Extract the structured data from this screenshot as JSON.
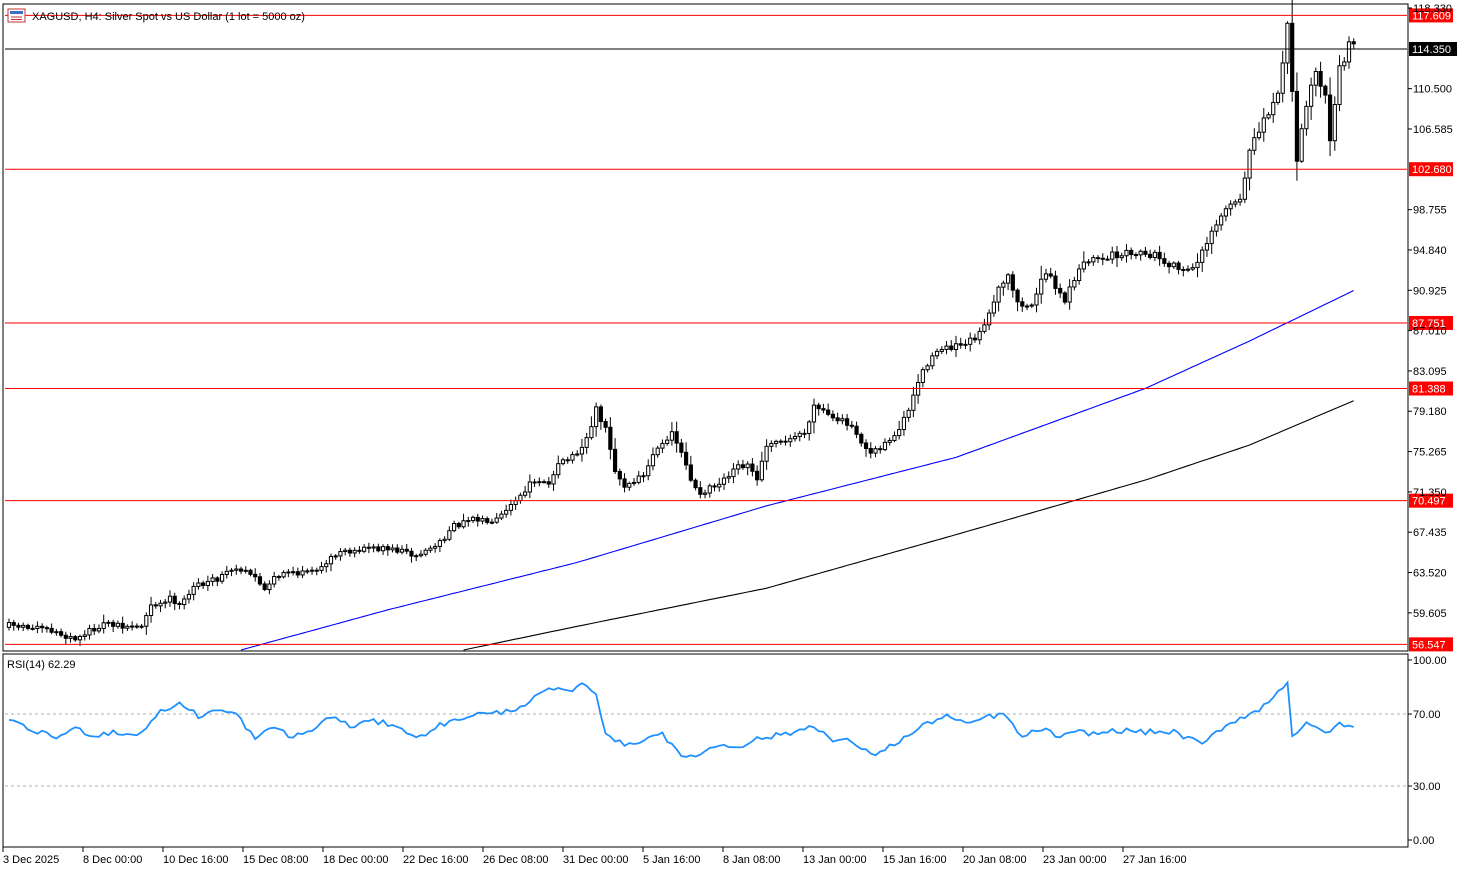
{
  "window": {
    "title": "XAGUSD, H4:  Silver Spot vs US Dollar (1 lot = 5000 oz)",
    "icon": "chart-window-icon"
  },
  "colors": {
    "background": "#ffffff",
    "candle": "#000000",
    "level_line": "#ff0000",
    "ma_fast": "#0000ff",
    "ma_slow": "#000000",
    "rsi_line": "#1e90ff",
    "rsi_levels": "#b0b0b0",
    "current_price_bg": "#000000",
    "level_label_bg": "#ff0000"
  },
  "chart_data": [
    {
      "type": "candlestick",
      "symbol": "XAGUSD",
      "timeframe": "H4",
      "ylim": [
        56.0,
        118.33
      ],
      "y_ticks": [
        "118.330",
        "110.500",
        "106.585",
        "98.755",
        "94.840",
        "90.925",
        "87.010",
        "83.095",
        "79.180",
        "75.265",
        "71.350",
        "67.435",
        "63.520",
        "59.605"
      ],
      "x_ticks": [
        "3 Dec 2025",
        "8 Dec 00:00",
        "10 Dec 16:00",
        "15 Dec 08:00",
        "18 Dec 00:00",
        "22 Dec 16:00",
        "26 Dec 08:00",
        "31 Dec 00:00",
        "5 Jan 16:00",
        "8 Jan 08:00",
        "13 Jan 00:00",
        "15 Jan 16:00",
        "20 Jan 08:00",
        "23 Jan 00:00",
        "27 Jan 16:00"
      ],
      "current_price": "114.350",
      "horizontal_levels": [
        "117.609",
        "102.680",
        "87.751",
        "81.388",
        "70.497",
        "56.547"
      ],
      "close_path": [
        [
          0,
          58.4
        ],
        [
          8,
          57.9
        ],
        [
          14,
          57.1
        ],
        [
          20,
          58.6
        ],
        [
          24,
          58.2
        ],
        [
          28,
          58.3
        ],
        [
          30,
          60.2
        ],
        [
          34,
          61.0
        ],
        [
          36,
          60.6
        ],
        [
          40,
          62.4
        ],
        [
          44,
          62.9
        ],
        [
          46,
          63.8
        ],
        [
          50,
          63.9
        ],
        [
          54,
          62.0
        ],
        [
          56,
          63.2
        ],
        [
          60,
          63.6
        ],
        [
          64,
          63.5
        ],
        [
          66,
          64.3
        ],
        [
          70,
          65.6
        ],
        [
          76,
          65.9
        ],
        [
          82,
          65.7
        ],
        [
          86,
          65.1
        ],
        [
          90,
          66.1
        ],
        [
          94,
          68.0
        ],
        [
          98,
          68.6
        ],
        [
          102,
          68.7
        ],
        [
          106,
          70.1
        ],
        [
          110,
          72.1
        ],
        [
          114,
          72.2
        ],
        [
          116,
          74.3
        ],
        [
          120,
          74.8
        ],
        [
          122,
          76.5
        ],
        [
          124,
          79.3
        ],
        [
          126,
          77.4
        ],
        [
          128,
          73.3
        ],
        [
          130,
          71.9
        ],
        [
          134,
          73.0
        ],
        [
          137,
          75.9
        ],
        [
          140,
          76.9
        ],
        [
          142,
          75.2
        ],
        [
          144,
          72.4
        ],
        [
          146,
          71.3
        ],
        [
          150,
          72.0
        ],
        [
          154,
          73.7
        ],
        [
          156,
          73.8
        ],
        [
          158,
          72.7
        ],
        [
          160,
          75.6
        ],
        [
          164,
          76.4
        ],
        [
          168,
          77.1
        ],
        [
          170,
          79.8
        ],
        [
          173,
          79.1
        ],
        [
          176,
          78.2
        ],
        [
          178,
          77.5
        ],
        [
          180,
          75.9
        ],
        [
          182,
          75.0
        ],
        [
          184,
          75.5
        ],
        [
          188,
          77.4
        ],
        [
          190,
          79.3
        ],
        [
          192,
          82.0
        ],
        [
          195,
          84.8
        ],
        [
          198,
          85.2
        ],
        [
          202,
          85.6
        ],
        [
          205,
          86.6
        ],
        [
          209,
          91.2
        ],
        [
          211,
          92.6
        ],
        [
          213,
          89.6
        ],
        [
          216,
          89.3
        ],
        [
          218,
          92.3
        ],
        [
          220,
          92.0
        ],
        [
          223,
          90.0
        ],
        [
          226,
          93.2
        ],
        [
          230,
          94.2
        ],
        [
          234,
          94.3
        ],
        [
          238,
          94.7
        ],
        [
          242,
          94.4
        ],
        [
          245,
          93.5
        ],
        [
          248,
          92.9
        ],
        [
          251,
          93.6
        ],
        [
          254,
          96.3
        ],
        [
          257,
          98.8
        ],
        [
          260,
          99.9
        ],
        [
          262,
          104.4
        ],
        [
          265,
          107.3
        ],
        [
          268,
          109.9
        ],
        [
          270,
          116.8
        ],
        [
          272,
          103.8
        ],
        [
          274,
          109.2
        ],
        [
          276,
          111.8
        ],
        [
          278,
          110.3
        ],
        [
          279,
          105.8
        ],
        [
          281,
          112.4
        ],
        [
          283,
          114.6
        ],
        [
          284,
          114.4
        ]
      ],
      "moving_averages": [
        {
          "points": [
            [
              49,
              56.0
            ],
            [
              80,
              59.9
            ],
            [
              120,
              64.5
            ],
            [
              160,
              70.0
            ],
            [
              200,
              74.7
            ],
            [
              240,
              81.4
            ],
            [
              262,
              86.0
            ],
            [
              284,
              90.9
            ]
          ]
        },
        {
          "points": [
            [
              96,
              56.0
            ],
            [
              120,
              58.3
            ],
            [
              160,
              62.0
            ],
            [
              200,
              67.2
            ],
            [
              240,
              72.5
            ],
            [
              262,
              75.9
            ],
            [
              284,
              80.2
            ]
          ]
        }
      ],
      "bar_count": 285
    },
    {
      "type": "line",
      "title": "RSI(14) 62.29",
      "ylim": [
        0,
        100
      ],
      "y_ticks": [
        "100.00",
        "70.00",
        "30.00",
        "0.00"
      ],
      "levels": [
        70,
        30
      ],
      "points": [
        [
          0,
          66
        ],
        [
          6,
          60
        ],
        [
          10,
          57
        ],
        [
          14,
          62
        ],
        [
          18,
          58
        ],
        [
          22,
          60
        ],
        [
          27,
          58
        ],
        [
          32,
          71
        ],
        [
          36,
          76
        ],
        [
          40,
          69
        ],
        [
          44,
          72
        ],
        [
          48,
          70
        ],
        [
          52,
          56
        ],
        [
          56,
          63
        ],
        [
          60,
          57
        ],
        [
          64,
          61
        ],
        [
          68,
          69
        ],
        [
          72,
          63
        ],
        [
          76,
          66
        ],
        [
          82,
          64
        ],
        [
          86,
          56
        ],
        [
          90,
          63
        ],
        [
          94,
          66
        ],
        [
          98,
          70
        ],
        [
          102,
          70
        ],
        [
          106,
          72
        ],
        [
          110,
          77
        ],
        [
          114,
          84
        ],
        [
          118,
          82
        ],
        [
          122,
          87
        ],
        [
          124,
          80
        ],
        [
          126,
          60
        ],
        [
          130,
          52
        ],
        [
          134,
          56
        ],
        [
          138,
          60
        ],
        [
          140,
          52
        ],
        [
          142,
          46
        ],
        [
          146,
          48
        ],
        [
          150,
          53
        ],
        [
          154,
          52
        ],
        [
          158,
          56
        ],
        [
          162,
          58
        ],
        [
          166,
          60
        ],
        [
          170,
          64
        ],
        [
          174,
          55
        ],
        [
          178,
          55
        ],
        [
          182,
          47
        ],
        [
          186,
          52
        ],
        [
          190,
          58
        ],
        [
          194,
          65
        ],
        [
          198,
          69
        ],
        [
          202,
          64
        ],
        [
          206,
          68
        ],
        [
          210,
          70
        ],
        [
          214,
          57
        ],
        [
          218,
          62
        ],
        [
          222,
          57
        ],
        [
          226,
          60
        ],
        [
          230,
          59
        ],
        [
          234,
          61
        ],
        [
          240,
          60
        ],
        [
          246,
          60
        ],
        [
          252,
          53
        ],
        [
          256,
          62
        ],
        [
          260,
          68
        ],
        [
          264,
          72
        ],
        [
          270,
          88
        ],
        [
          271,
          58
        ],
        [
          274,
          64
        ],
        [
          278,
          60
        ],
        [
          281,
          64
        ],
        [
          284,
          62.29
        ]
      ]
    }
  ]
}
